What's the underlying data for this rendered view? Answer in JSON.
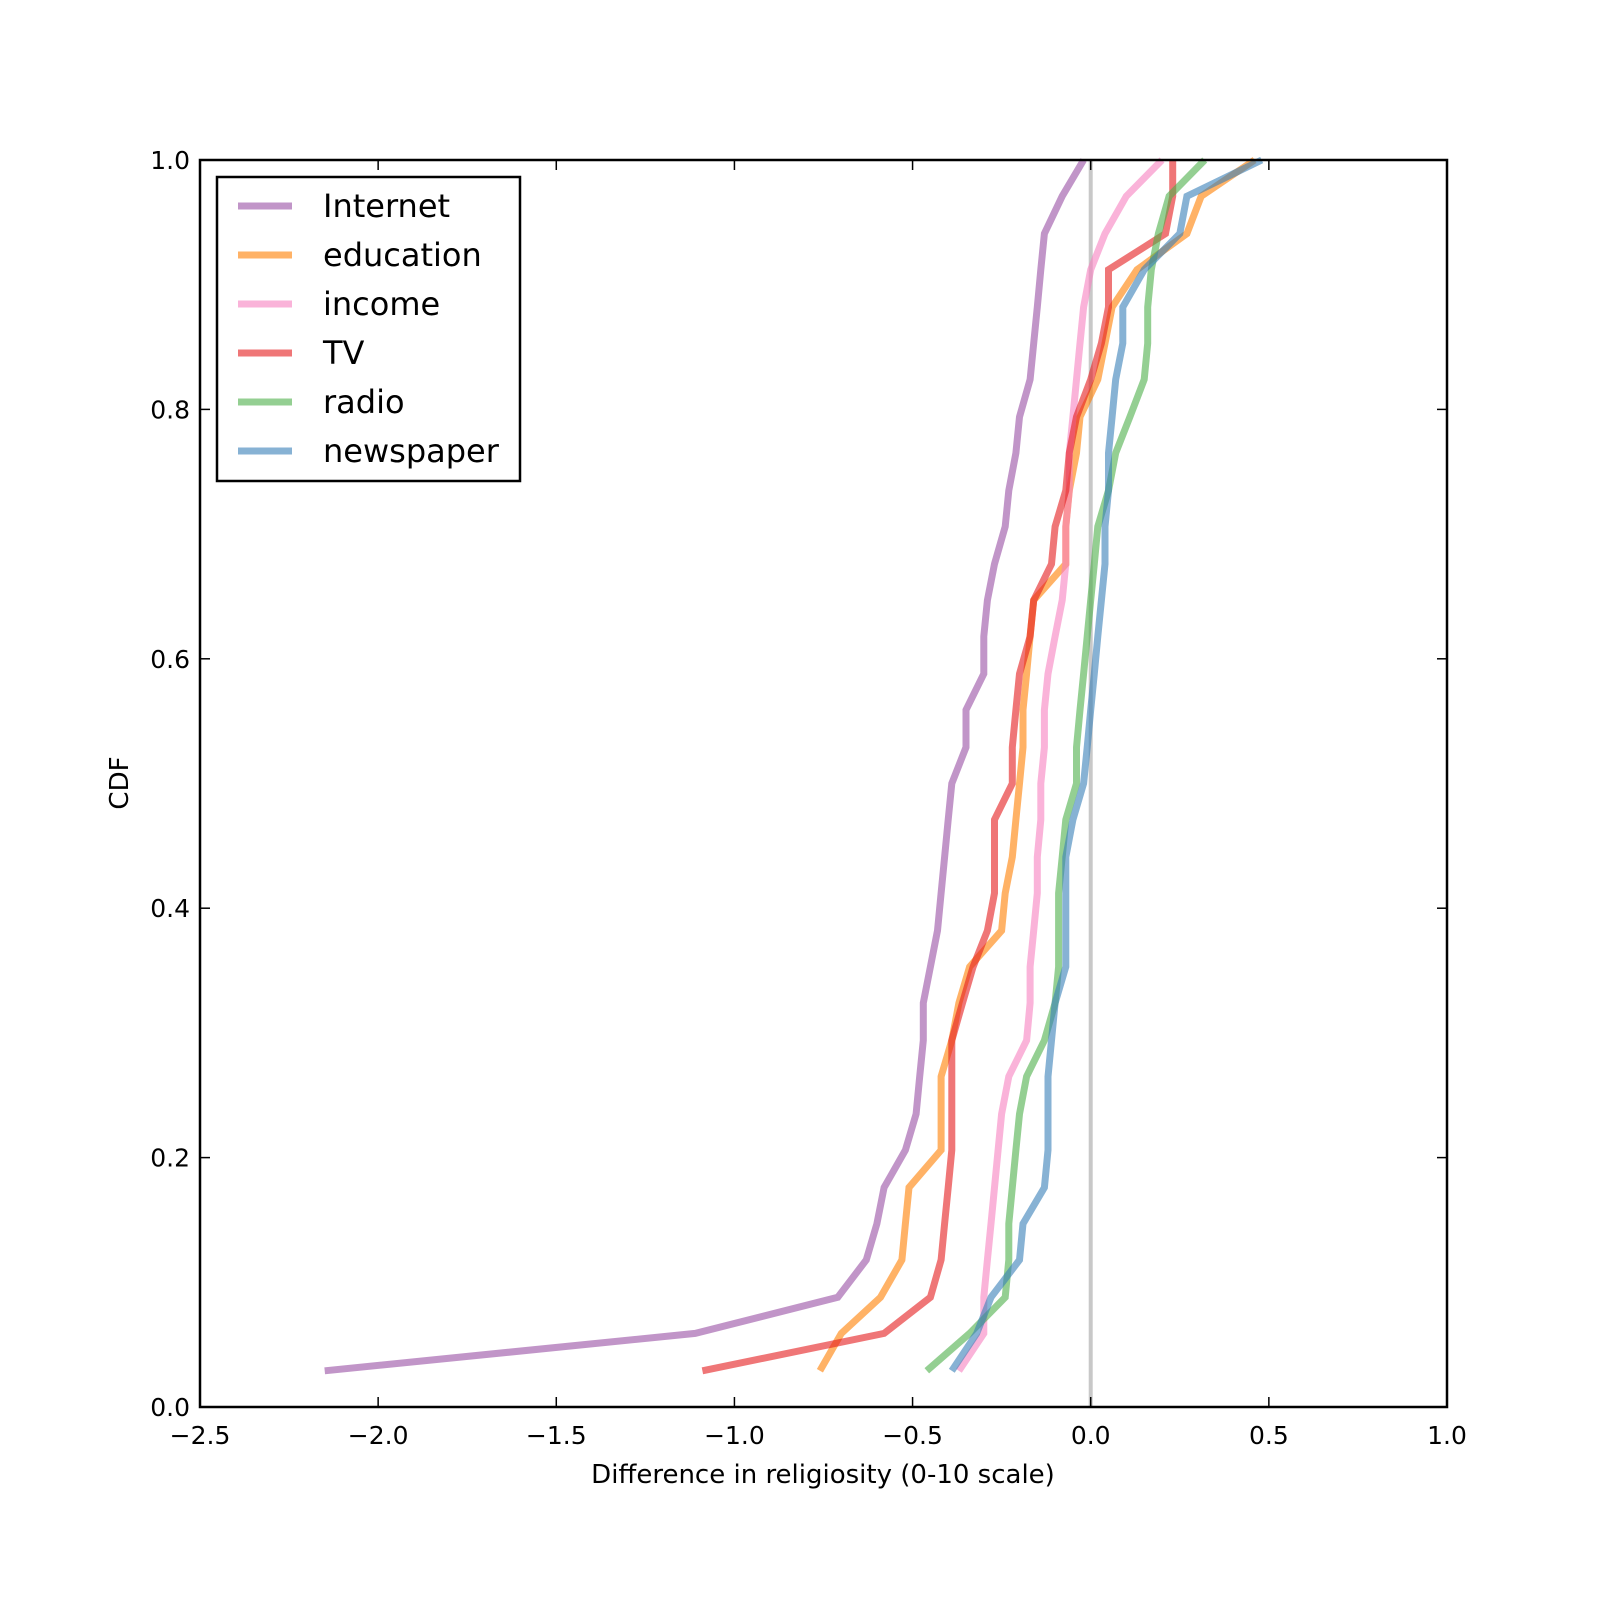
{
  "chart_data": {
    "type": "line",
    "title": "",
    "xlabel": "Difference in religiosity (0-10 scale)",
    "ylabel": "CDF",
    "xlim": [
      -2.5,
      1.0
    ],
    "ylim": [
      0.0,
      1.0
    ],
    "xticks": [
      -2.5,
      -2.0,
      -1.5,
      -1.0,
      -0.5,
      0.0,
      0.5,
      1.0
    ],
    "xtick_labels": [
      "−2.5",
      "−2.0",
      "−1.5",
      "−1.0",
      "−0.5",
      "0.0",
      "0.5",
      "1.0"
    ],
    "yticks": [
      0.0,
      0.2,
      0.4,
      0.6,
      0.8,
      1.0
    ],
    "ytick_labels": [
      "0.0",
      "0.2",
      "0.4",
      "0.6",
      "0.8",
      "1.0"
    ],
    "grid": false,
    "legend_position": "top-left",
    "reference_line": {
      "x": 0.0,
      "color": "#c8c8c8"
    },
    "series": [
      {
        "name": "Internet",
        "color": "#984ea3",
        "points": [
          [
            -2.15,
            0.029
          ],
          [
            -1.11,
            0.059
          ],
          [
            -0.71,
            0.088
          ],
          [
            -0.63,
            0.118
          ],
          [
            -0.6,
            0.147
          ],
          [
            -0.58,
            0.176
          ],
          [
            -0.52,
            0.206
          ],
          [
            -0.49,
            0.235
          ],
          [
            -0.48,
            0.265
          ],
          [
            -0.47,
            0.294
          ],
          [
            -0.47,
            0.324
          ],
          [
            -0.45,
            0.353
          ],
          [
            -0.43,
            0.382
          ],
          [
            -0.42,
            0.412
          ],
          [
            -0.41,
            0.441
          ],
          [
            -0.4,
            0.471
          ],
          [
            -0.39,
            0.5
          ],
          [
            -0.35,
            0.529
          ],
          [
            -0.35,
            0.559
          ],
          [
            -0.3,
            0.588
          ],
          [
            -0.3,
            0.618
          ],
          [
            -0.29,
            0.647
          ],
          [
            -0.27,
            0.676
          ],
          [
            -0.24,
            0.706
          ],
          [
            -0.23,
            0.735
          ],
          [
            -0.21,
            0.765
          ],
          [
            -0.2,
            0.794
          ],
          [
            -0.17,
            0.824
          ],
          [
            -0.16,
            0.853
          ],
          [
            -0.15,
            0.882
          ],
          [
            -0.14,
            0.912
          ],
          [
            -0.13,
            0.941
          ],
          [
            -0.08,
            0.971
          ],
          [
            -0.02,
            1.0
          ]
        ]
      },
      {
        "name": "education",
        "color": "#ff7f00",
        "points": [
          [
            -0.76,
            0.029
          ],
          [
            -0.7,
            0.059
          ],
          [
            -0.59,
            0.088
          ],
          [
            -0.53,
            0.118
          ],
          [
            -0.52,
            0.147
          ],
          [
            -0.51,
            0.176
          ],
          [
            -0.42,
            0.206
          ],
          [
            -0.42,
            0.235
          ],
          [
            -0.42,
            0.265
          ],
          [
            -0.39,
            0.294
          ],
          [
            -0.37,
            0.324
          ],
          [
            -0.34,
            0.353
          ],
          [
            -0.25,
            0.382
          ],
          [
            -0.24,
            0.412
          ],
          [
            -0.22,
            0.441
          ],
          [
            -0.21,
            0.471
          ],
          [
            -0.2,
            0.5
          ],
          [
            -0.19,
            0.529
          ],
          [
            -0.19,
            0.559
          ],
          [
            -0.18,
            0.588
          ],
          [
            -0.17,
            0.618
          ],
          [
            -0.16,
            0.647
          ],
          [
            -0.07,
            0.676
          ],
          [
            -0.07,
            0.706
          ],
          [
            -0.06,
            0.735
          ],
          [
            -0.04,
            0.765
          ],
          [
            -0.03,
            0.794
          ],
          [
            0.02,
            0.824
          ],
          [
            0.04,
            0.853
          ],
          [
            0.06,
            0.882
          ],
          [
            0.13,
            0.912
          ],
          [
            0.27,
            0.941
          ],
          [
            0.31,
            0.971
          ],
          [
            0.46,
            1.0
          ]
        ]
      },
      {
        "name": "income",
        "color": "#f781bf",
        "points": [
          [
            -0.37,
            0.029
          ],
          [
            -0.3,
            0.059
          ],
          [
            -0.3,
            0.088
          ],
          [
            -0.29,
            0.118
          ],
          [
            -0.28,
            0.147
          ],
          [
            -0.27,
            0.176
          ],
          [
            -0.26,
            0.206
          ],
          [
            -0.25,
            0.235
          ],
          [
            -0.23,
            0.265
          ],
          [
            -0.18,
            0.294
          ],
          [
            -0.17,
            0.324
          ],
          [
            -0.17,
            0.353
          ],
          [
            -0.16,
            0.382
          ],
          [
            -0.15,
            0.412
          ],
          [
            -0.15,
            0.441
          ],
          [
            -0.14,
            0.471
          ],
          [
            -0.14,
            0.5
          ],
          [
            -0.13,
            0.529
          ],
          [
            -0.13,
            0.559
          ],
          [
            -0.12,
            0.588
          ],
          [
            -0.1,
            0.618
          ],
          [
            -0.08,
            0.647
          ],
          [
            -0.07,
            0.676
          ],
          [
            -0.07,
            0.706
          ],
          [
            -0.06,
            0.735
          ],
          [
            -0.06,
            0.765
          ],
          [
            -0.05,
            0.794
          ],
          [
            -0.04,
            0.824
          ],
          [
            -0.03,
            0.853
          ],
          [
            -0.02,
            0.882
          ],
          [
            0.0,
            0.912
          ],
          [
            0.04,
            0.941
          ],
          [
            0.1,
            0.971
          ],
          [
            0.2,
            1.0
          ]
        ]
      },
      {
        "name": "TV",
        "color": "#e41a1c",
        "points": [
          [
            -1.09,
            0.029
          ],
          [
            -0.58,
            0.059
          ],
          [
            -0.45,
            0.088
          ],
          [
            -0.42,
            0.118
          ],
          [
            -0.41,
            0.147
          ],
          [
            -0.4,
            0.176
          ],
          [
            -0.39,
            0.206
          ],
          [
            -0.39,
            0.235
          ],
          [
            -0.39,
            0.265
          ],
          [
            -0.39,
            0.294
          ],
          [
            -0.36,
            0.324
          ],
          [
            -0.33,
            0.353
          ],
          [
            -0.29,
            0.382
          ],
          [
            -0.27,
            0.412
          ],
          [
            -0.27,
            0.441
          ],
          [
            -0.27,
            0.471
          ],
          [
            -0.22,
            0.5
          ],
          [
            -0.22,
            0.529
          ],
          [
            -0.21,
            0.559
          ],
          [
            -0.2,
            0.588
          ],
          [
            -0.17,
            0.618
          ],
          [
            -0.16,
            0.647
          ],
          [
            -0.11,
            0.676
          ],
          [
            -0.1,
            0.706
          ],
          [
            -0.07,
            0.735
          ],
          [
            -0.06,
            0.765
          ],
          [
            -0.04,
            0.794
          ],
          [
            0.0,
            0.824
          ],
          [
            0.03,
            0.853
          ],
          [
            0.05,
            0.882
          ],
          [
            0.05,
            0.912
          ],
          [
            0.21,
            0.941
          ],
          [
            0.23,
            0.971
          ],
          [
            0.23,
            1.0
          ]
        ]
      },
      {
        "name": "radio",
        "color": "#4daf4a",
        "points": [
          [
            -0.46,
            0.029
          ],
          [
            -0.34,
            0.059
          ],
          [
            -0.24,
            0.088
          ],
          [
            -0.23,
            0.118
          ],
          [
            -0.23,
            0.147
          ],
          [
            -0.22,
            0.176
          ],
          [
            -0.21,
            0.206
          ],
          [
            -0.2,
            0.235
          ],
          [
            -0.18,
            0.265
          ],
          [
            -0.13,
            0.294
          ],
          [
            -0.1,
            0.324
          ],
          [
            -0.09,
            0.353
          ],
          [
            -0.09,
            0.382
          ],
          [
            -0.09,
            0.412
          ],
          [
            -0.08,
            0.441
          ],
          [
            -0.07,
            0.471
          ],
          [
            -0.04,
            0.5
          ],
          [
            -0.04,
            0.529
          ],
          [
            -0.03,
            0.559
          ],
          [
            -0.02,
            0.588
          ],
          [
            -0.01,
            0.618
          ],
          [
            0.0,
            0.647
          ],
          [
            0.01,
            0.676
          ],
          [
            0.02,
            0.706
          ],
          [
            0.05,
            0.735
          ],
          [
            0.07,
            0.765
          ],
          [
            0.11,
            0.794
          ],
          [
            0.15,
            0.824
          ],
          [
            0.16,
            0.853
          ],
          [
            0.16,
            0.882
          ],
          [
            0.17,
            0.912
          ],
          [
            0.19,
            0.941
          ],
          [
            0.22,
            0.971
          ],
          [
            0.32,
            1.0
          ]
        ]
      },
      {
        "name": "newspaper",
        "color": "#377eb8",
        "points": [
          [
            -0.39,
            0.029
          ],
          [
            -0.32,
            0.059
          ],
          [
            -0.28,
            0.088
          ],
          [
            -0.2,
            0.118
          ],
          [
            -0.19,
            0.147
          ],
          [
            -0.13,
            0.176
          ],
          [
            -0.12,
            0.206
          ],
          [
            -0.12,
            0.235
          ],
          [
            -0.12,
            0.265
          ],
          [
            -0.11,
            0.294
          ],
          [
            -0.1,
            0.324
          ],
          [
            -0.07,
            0.353
          ],
          [
            -0.07,
            0.382
          ],
          [
            -0.07,
            0.412
          ],
          [
            -0.07,
            0.441
          ],
          [
            -0.05,
            0.471
          ],
          [
            -0.02,
            0.5
          ],
          [
            -0.01,
            0.529
          ],
          [
            0.0,
            0.559
          ],
          [
            0.01,
            0.588
          ],
          [
            0.02,
            0.618
          ],
          [
            0.03,
            0.647
          ],
          [
            0.04,
            0.676
          ],
          [
            0.04,
            0.706
          ],
          [
            0.05,
            0.735
          ],
          [
            0.05,
            0.765
          ],
          [
            0.06,
            0.794
          ],
          [
            0.07,
            0.824
          ],
          [
            0.09,
            0.853
          ],
          [
            0.09,
            0.882
          ],
          [
            0.15,
            0.912
          ],
          [
            0.25,
            0.941
          ],
          [
            0.27,
            0.971
          ],
          [
            0.48,
            1.0
          ]
        ]
      }
    ]
  }
}
